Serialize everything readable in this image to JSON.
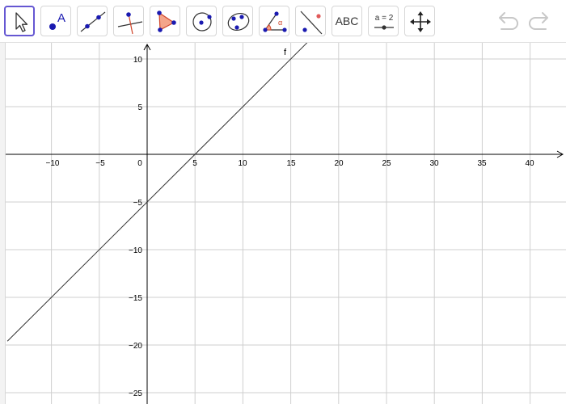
{
  "toolbar": {
    "tools": [
      {
        "name": "move-tool",
        "label": ""
      },
      {
        "name": "point-tool",
        "label": "A"
      },
      {
        "name": "line-tool",
        "label": ""
      },
      {
        "name": "perpendicular-line-tool",
        "label": ""
      },
      {
        "name": "polygon-tool",
        "label": ""
      },
      {
        "name": "circle-center-point-tool",
        "label": ""
      },
      {
        "name": "conic-tool",
        "label": ""
      },
      {
        "name": "angle-tool",
        "label": "α"
      },
      {
        "name": "reflect-tool",
        "label": ""
      },
      {
        "name": "text-tool",
        "label": "ABC"
      },
      {
        "name": "slider-tool",
        "label": "a = 2"
      },
      {
        "name": "move-graphics-view-tool",
        "label": ""
      }
    ],
    "active_tool": "move-tool",
    "accent_color": "#6557d2",
    "point_color": "#1a1ab0",
    "undo_icon": "undo-icon",
    "redo_icon": "redo-icon"
  },
  "graph": {
    "function_label": "f",
    "x_ticks": [
      "−10",
      "−5",
      "0",
      "5",
      "10",
      "15",
      "20",
      "25",
      "30",
      "35",
      "40"
    ],
    "y_ticks": [
      "10",
      "5",
      "−5",
      "−10",
      "−15",
      "−20",
      "−25"
    ],
    "x_range": [
      -14.6,
      44
    ],
    "y_range": [
      -26,
      11.8
    ],
    "grid": true
  },
  "chart_data": {
    "type": "line",
    "title": "",
    "xlabel": "",
    "ylabel": "",
    "xlim": [
      -14.6,
      44
    ],
    "ylim": [
      -26,
      11.8
    ],
    "grid": true,
    "series": [
      {
        "name": "f",
        "x": [
          -14.6,
          16.7
        ],
        "y": [
          -19.6,
          11.7
        ]
      }
    ],
    "function": "f(x) = x - 5"
  }
}
